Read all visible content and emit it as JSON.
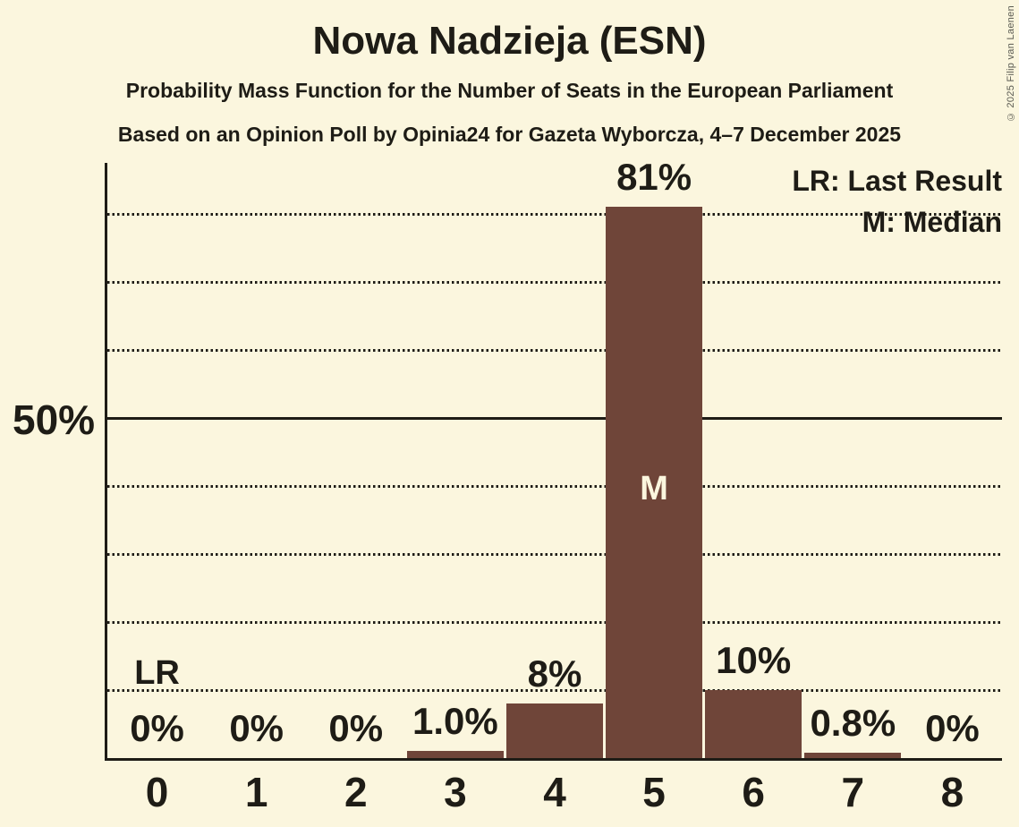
{
  "page": {
    "background_color": "#fbf6de",
    "text_color": "#1e1c16"
  },
  "header": {
    "title": "Nowa Nadzieja (ESN)",
    "subtitle1": "Probability Mass Function for the Number of Seats in the European Parliament",
    "subtitle2": "Based on an Opinion Poll by Opinia24 for Gazeta Wyborcza, 4–7 December 2025"
  },
  "legend": {
    "lr": "LR: Last Result",
    "m": "M: Median"
  },
  "copyright": "© 2025 Filip van Laenen",
  "chart_data": {
    "type": "bar",
    "title": "Nowa Nadzieja (ESN)",
    "xlabel": "",
    "ylabel": "",
    "categories": [
      "0",
      "1",
      "2",
      "3",
      "4",
      "5",
      "6",
      "7",
      "8"
    ],
    "values": [
      0,
      0,
      0,
      1.0,
      8,
      81,
      10,
      0.8,
      0
    ],
    "bar_labels": [
      "0%",
      "0%",
      "0%",
      "1.0%",
      "8%",
      "81%",
      "10%",
      "0.8%",
      "0%"
    ],
    "bar_color": "#6f4539",
    "median_text_color": "#fbf6de",
    "y_axis": {
      "tick_label": "50%",
      "tick_value": 50,
      "max_value_shown": 87.5,
      "dotted_gridlines_pct": [
        10,
        20,
        30,
        40,
        60,
        70,
        80
      ],
      "solid_gridline_pct": 50,
      "grid": "dotted horizontal lines every 10%, solid line at 50%"
    },
    "markers": {
      "median": {
        "seat": "5",
        "label": "M"
      },
      "last_result": {
        "seat": "0",
        "label": "LR"
      }
    },
    "legend_position": "top-right"
  }
}
